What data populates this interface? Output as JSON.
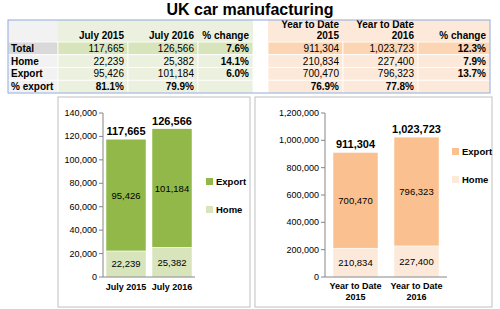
{
  "title": "UK car manufacturing",
  "table": {
    "header": [
      [
        "July 2015"
      ],
      [
        "July 2016"
      ],
      [
        "% change"
      ],
      [
        "Year to Date",
        "2015"
      ],
      [
        "Year to Date",
        "2016"
      ],
      [
        "% change"
      ]
    ],
    "rows": [
      {
        "label": "Total",
        "cells": [
          "117,665",
          "126,566",
          "7.6%",
          "911,304",
          "1,023,723",
          "12.3%"
        ]
      },
      {
        "label": "Home",
        "cells": [
          "22,239",
          "25,382",
          "14.1%",
          "210,834",
          "227,400",
          "7.9%"
        ]
      },
      {
        "label": "Export",
        "cells": [
          "95,426",
          "101,184",
          "6.0%",
          "700,470",
          "796,323",
          "13.7%"
        ]
      },
      {
        "label": "% export",
        "cells": [
          "81.1%",
          "79.9%",
          null,
          "76.9%",
          "77.8%",
          null
        ]
      }
    ]
  },
  "chart_data": [
    {
      "type": "bar",
      "stacked": true,
      "data_labels": true,
      "grid": false,
      "legend": "right",
      "categories": [
        "July 2015",
        "July 2016"
      ],
      "series": [
        {
          "name": "Home",
          "color": "#d8e4bc",
          "values": [
            22239,
            25382
          ],
          "value_labels": [
            "22,239",
            "25,382"
          ]
        },
        {
          "name": "Export",
          "color": "#92b84a",
          "values": [
            95426,
            101184
          ],
          "value_labels": [
            "95,426",
            "101,184"
          ]
        }
      ],
      "totals": {
        "values": [
          117665,
          126566
        ],
        "value_labels": [
          "117,665",
          "126,566"
        ]
      },
      "ylim": [
        0,
        140000
      ],
      "yticks": [
        0,
        {
          "value": 20000,
          "label": "20,000"
        },
        {
          "value": 40000,
          "label": "40,000"
        },
        {
          "value": 60000,
          "label": "60,000"
        },
        {
          "value": 80000,
          "label": "80,000"
        },
        {
          "value": 100000,
          "label": "100,000"
        },
        {
          "value": 120000,
          "label": "120,000"
        },
        {
          "value": 140000,
          "label": "140,000"
        }
      ]
    },
    {
      "type": "bar",
      "stacked": true,
      "data_labels": true,
      "grid": false,
      "legend": "right",
      "categories": [
        "Year to Date 2015",
        "Year to Date 2016"
      ],
      "series": [
        {
          "name": "Home",
          "color": "#fde9d9",
          "values": [
            210834,
            227400
          ],
          "value_labels": [
            "210,834",
            "227,400"
          ]
        },
        {
          "name": "Export",
          "color": "#fac08f",
          "values": [
            700470,
            796323
          ],
          "value_labels": [
            "700,470",
            "796,323"
          ]
        }
      ],
      "totals": {
        "values": [
          911304,
          1023723
        ],
        "value_labels": [
          "911,304",
          "1,023,723"
        ]
      },
      "ylim": [
        0,
        1200000
      ],
      "yticks": [
        0,
        {
          "value": 200000,
          "label": "200,000"
        },
        {
          "value": 400000,
          "label": "400,000"
        },
        {
          "value": 600000,
          "label": "600,000"
        },
        {
          "value": 800000,
          "label": "800,000"
        },
        {
          "value": 1000000,
          "label": "1,000,000"
        },
        {
          "value": 1200000,
          "label": "1,200,000"
        }
      ]
    }
  ]
}
